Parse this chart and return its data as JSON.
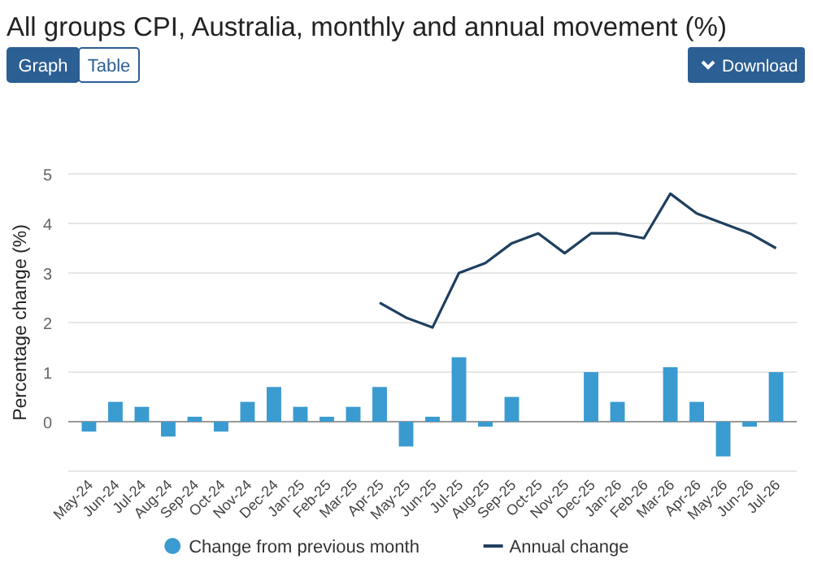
{
  "chart_data": {
    "type": "bar",
    "title": "All groups CPI, Australia, monthly and annual movement (%)",
    "ylabel": "Percentage change (%)",
    "annotations": [
      "Graph",
      "Table",
      "Download"
    ],
    "categories": [
      "May-24",
      "Jun-24",
      "Jul-24",
      "Aug-24",
      "Sep-24",
      "Oct-24",
      "Nov-24",
      "Dec-24",
      "Jan-25",
      "Feb-25",
      "Mar-25",
      "Apr-25",
      "May-25",
      "Jun-25",
      "Jul-25",
      "Aug-25",
      "Sep-25",
      "Oct-25",
      "Nov-25",
      "Dec-25",
      "Jan-26",
      "Feb-26",
      "Mar-26",
      "Apr-26",
      "May-26",
      "Jun-26",
      "Jul-26"
    ],
    "series": [
      {
        "name": "Change from previous month",
        "color": "#3a9bd0",
        "values": [
          -0.2,
          0.4,
          0.3,
          -0.3,
          0.1,
          -0.2,
          0.4,
          0.7,
          0.3,
          0.1,
          0.3,
          0.7,
          -0.5,
          0.1,
          1.3,
          -0.1,
          0.5,
          null,
          null,
          1.0,
          0.4,
          null,
          1.1,
          0.4,
          -0.7,
          -0.1,
          1.0
        ]
      },
      {
        "name": "Annual change",
        "type": "line",
        "color": "#1f3f5f",
        "values": [
          null,
          null,
          null,
          null,
          null,
          null,
          null,
          null,
          null,
          null,
          null,
          2.4,
          2.1,
          1.9,
          3.0,
          3.2,
          3.6,
          3.8,
          3.4,
          3.8,
          3.8,
          3.7,
          4.6,
          4.2,
          4.0,
          3.8,
          3.5
        ]
      }
    ],
    "ylim": [
      -1,
      5
    ],
    "yticks": [
      {
        "value": -1,
        "label": null
      },
      0,
      1,
      2,
      3,
      4,
      5
    ],
    "grid": "y",
    "legend": "bottom",
    "marker": "none"
  }
}
